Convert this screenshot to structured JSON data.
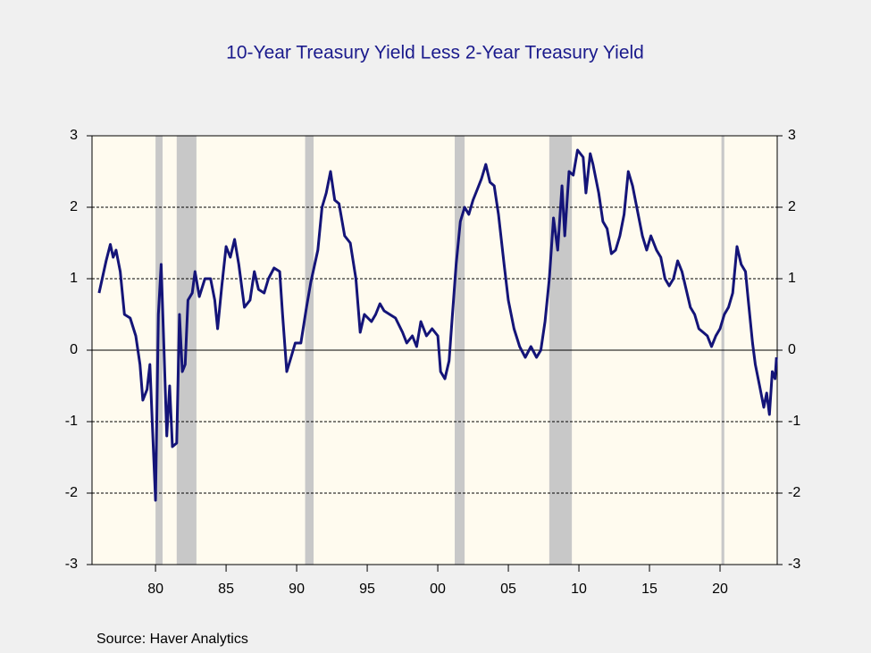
{
  "chart_data": {
    "type": "line",
    "title": "10-Year Treasury Yield Less 2-Year Treasury Yield",
    "source": "Source:  Haver Analytics",
    "color": "#141478",
    "recession_color": "#c8c8c8",
    "plot_background": "#fffbef",
    "xlim": [
      1975.5,
      2024.05
    ],
    "xticks": [
      {
        "value": 1980,
        "label": "80"
      },
      {
        "value": 1985,
        "label": "85"
      },
      {
        "value": 1990,
        "label": "90"
      },
      {
        "value": 1995,
        "label": "95"
      },
      {
        "value": 2000,
        "label": "00"
      },
      {
        "value": 2005,
        "label": "05"
      },
      {
        "value": 2010,
        "label": "10"
      },
      {
        "value": 2015,
        "label": "15"
      },
      {
        "value": 2020,
        "label": "20"
      }
    ],
    "ylim": [
      -3,
      3
    ],
    "yticks": [
      -3,
      -2,
      -1,
      0,
      1,
      2,
      3
    ],
    "grid": true,
    "recessions": [
      [
        1980.0,
        1980.5
      ],
      [
        1981.5,
        1982.9
      ],
      [
        1990.6,
        1991.2
      ],
      [
        2001.2,
        2001.9
      ],
      [
        2007.9,
        2009.5
      ],
      [
        2020.1,
        2020.3
      ]
    ],
    "x": [
      1976.0,
      1976.5,
      1976.8,
      1977.0,
      1977.2,
      1977.5,
      1977.8,
      1978.2,
      1978.6,
      1978.9,
      1979.1,
      1979.4,
      1979.6,
      1979.8,
      1980.0,
      1980.2,
      1980.4,
      1980.6,
      1980.8,
      1981.0,
      1981.2,
      1981.5,
      1981.7,
      1981.9,
      1982.1,
      1982.3,
      1982.6,
      1982.8,
      1983.1,
      1983.5,
      1983.9,
      1984.2,
      1984.4,
      1984.7,
      1985.0,
      1985.3,
      1985.6,
      1985.9,
      1986.3,
      1986.7,
      1987.0,
      1987.3,
      1987.7,
      1988.0,
      1988.4,
      1988.8,
      1989.0,
      1989.3,
      1989.6,
      1989.9,
      1990.3,
      1990.7,
      1991.0,
      1991.5,
      1991.8,
      1992.1,
      1992.4,
      1992.7,
      1993.0,
      1993.4,
      1993.8,
      1994.2,
      1994.5,
      1994.8,
      1995.3,
      1995.6,
      1995.9,
      1996.2,
      1996.6,
      1997.0,
      1997.5,
      1997.8,
      1998.2,
      1998.5,
      1998.8,
      1999.2,
      1999.6,
      2000.0,
      2000.2,
      2000.5,
      2000.8,
      2001.0,
      2001.3,
      2001.6,
      2001.9,
      2002.2,
      2002.5,
      2002.8,
      2003.1,
      2003.4,
      2003.7,
      2004.0,
      2004.3,
      2004.7,
      2005.0,
      2005.4,
      2005.8,
      2006.2,
      2006.6,
      2007.0,
      2007.3,
      2007.6,
      2007.9,
      2008.2,
      2008.5,
      2008.8,
      2009.0,
      2009.3,
      2009.6,
      2009.9,
      2010.3,
      2010.5,
      2010.8,
      2011.0,
      2011.4,
      2011.7,
      2012.0,
      2012.3,
      2012.6,
      2012.9,
      2013.2,
      2013.5,
      2013.8,
      2014.1,
      2014.5,
      2014.8,
      2015.1,
      2015.5,
      2015.8,
      2016.1,
      2016.4,
      2016.7,
      2017.0,
      2017.3,
      2017.6,
      2017.9,
      2018.2,
      2018.5,
      2018.8,
      2019.1,
      2019.4,
      2019.7,
      2020.0,
      2020.3,
      2020.6,
      2020.9,
      2021.2,
      2021.5,
      2021.8,
      2022.0,
      2022.3,
      2022.5,
      2022.8,
      2023.1,
      2023.3,
      2023.5,
      2023.7,
      2023.9,
      2024.0
    ],
    "values": [
      0.8,
      1.25,
      1.48,
      1.3,
      1.4,
      1.1,
      0.5,
      0.45,
      0.2,
      -0.2,
      -0.7,
      -0.55,
      -0.2,
      -1.15,
      -2.1,
      0.5,
      1.2,
      0.0,
      -1.2,
      -0.5,
      -1.35,
      -1.3,
      0.5,
      -0.3,
      -0.2,
      0.7,
      0.8,
      1.1,
      0.75,
      1.0,
      1.0,
      0.7,
      0.3,
      0.9,
      1.45,
      1.3,
      1.55,
      1.2,
      0.6,
      0.7,
      1.1,
      0.85,
      0.8,
      1.0,
      1.15,
      1.1,
      0.5,
      -0.3,
      -0.1,
      0.1,
      0.1,
      0.6,
      0.95,
      1.4,
      2.0,
      2.2,
      2.5,
      2.1,
      2.05,
      1.6,
      1.5,
      1.0,
      0.25,
      0.5,
      0.4,
      0.5,
      0.65,
      0.55,
      0.5,
      0.45,
      0.25,
      0.1,
      0.2,
      0.05,
      0.4,
      0.2,
      0.3,
      0.2,
      -0.3,
      -0.4,
      -0.15,
      0.4,
      1.2,
      1.8,
      2.0,
      1.9,
      2.1,
      2.25,
      2.4,
      2.6,
      2.35,
      2.3,
      1.9,
      1.2,
      0.7,
      0.3,
      0.05,
      -0.1,
      0.05,
      -0.1,
      0.0,
      0.4,
      1.0,
      1.85,
      1.4,
      2.3,
      1.6,
      2.5,
      2.45,
      2.8,
      2.7,
      2.2,
      2.75,
      2.6,
      2.2,
      1.8,
      1.7,
      1.35,
      1.4,
      1.6,
      1.9,
      2.5,
      2.3,
      2.0,
      1.6,
      1.4,
      1.6,
      1.4,
      1.3,
      1.0,
      0.9,
      1.0,
      1.25,
      1.1,
      0.85,
      0.6,
      0.5,
      0.3,
      0.25,
      0.2,
      0.05,
      0.2,
      0.3,
      0.5,
      0.6,
      0.8,
      1.45,
      1.2,
      1.1,
      0.7,
      0.1,
      -0.2,
      -0.5,
      -0.8,
      -0.6,
      -0.9,
      -0.3,
      -0.4,
      -0.1
    ]
  }
}
